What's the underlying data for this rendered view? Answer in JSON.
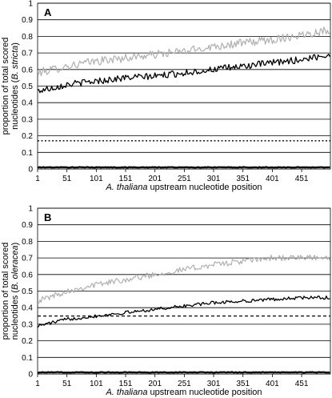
{
  "chart_data": [
    {
      "type": "line",
      "panel_label": "A",
      "ylabel": "proportion of total scored nucleotides (B. stricta)",
      "ylabel_parts": [
        "proportion of total scored",
        "nucleotides (",
        "B. stricta",
        ")"
      ],
      "xlabel": "A. thaliana upstream nucleotide position",
      "xlabel_parts": [
        "A. thaliana",
        " upstream nucleotide position"
      ],
      "ylim": [
        0,
        1
      ],
      "xlim": [
        1,
        500
      ],
      "yticks": [
        "0",
        "0.1",
        "0.2",
        "0.3",
        "0.4",
        "0.5",
        "0.6",
        "0.7",
        "0.8",
        "0.9",
        "1"
      ],
      "xticks": [
        "1",
        "51",
        "101",
        "151",
        "201",
        "251",
        "301",
        "351",
        "401",
        "451"
      ],
      "grid": true,
      "series": [
        {
          "style": "gray-solid",
          "color": "#b0b0b0",
          "x": [
            1,
            51,
            101,
            151,
            201,
            251,
            301,
            351,
            401,
            451,
            500
          ],
          "values": [
            0.58,
            0.62,
            0.65,
            0.67,
            0.69,
            0.71,
            0.74,
            0.76,
            0.78,
            0.81,
            0.84
          ],
          "noise": 0.025
        },
        {
          "style": "black-solid",
          "color": "#000000",
          "x": [
            1,
            51,
            101,
            151,
            201,
            251,
            301,
            351,
            401,
            451,
            500
          ],
          "values": [
            0.47,
            0.51,
            0.53,
            0.55,
            0.56,
            0.58,
            0.6,
            0.62,
            0.64,
            0.66,
            0.69
          ],
          "noise": 0.02
        },
        {
          "style": "black-dotted",
          "color": "#000000",
          "x": [
            1,
            500
          ],
          "values": [
            0.17,
            0.17
          ],
          "noise": 0
        },
        {
          "style": "black-thick",
          "color": "#000000",
          "x": [
            1,
            500
          ],
          "values": [
            0.01,
            0.01
          ],
          "noise": 0.002
        }
      ]
    },
    {
      "type": "line",
      "panel_label": "B",
      "ylabel": "proportion of total scored nucleotides (B. oleracea)",
      "ylabel_parts": [
        "proportion of total scored",
        "nucleotides (",
        "B. oleracea",
        ")"
      ],
      "xlabel": "A. thaliana upstream nucleotide position",
      "xlabel_parts": [
        "A. thaliana",
        " upstream nucleotide position"
      ],
      "ylim": [
        0,
        1
      ],
      "xlim": [
        1,
        500
      ],
      "yticks": [
        "0",
        "0.1",
        "0.2",
        "0.3",
        "0.4",
        "0.5",
        "0.6",
        "0.7",
        "0.8",
        "0.9",
        "1"
      ],
      "xticks": [
        "1",
        "51",
        "101",
        "151",
        "201",
        "251",
        "301",
        "351",
        "401",
        "451"
      ],
      "grid": true,
      "series": [
        {
          "style": "gray-solid",
          "color": "#b0b0b0",
          "x": [
            1,
            51,
            101,
            151,
            201,
            251,
            301,
            351,
            401,
            451,
            500
          ],
          "values": [
            0.44,
            0.5,
            0.54,
            0.57,
            0.6,
            0.63,
            0.66,
            0.68,
            0.7,
            0.7,
            0.7
          ],
          "noise": 0.018
        },
        {
          "style": "black-solid",
          "color": "#000000",
          "x": [
            1,
            51,
            101,
            151,
            201,
            251,
            301,
            351,
            401,
            451,
            500
          ],
          "values": [
            0.29,
            0.33,
            0.35,
            0.37,
            0.39,
            0.41,
            0.43,
            0.44,
            0.45,
            0.46,
            0.46
          ],
          "noise": 0.01
        },
        {
          "style": "black-dashed",
          "color": "#000000",
          "x": [
            1,
            500
          ],
          "values": [
            0.35,
            0.35
          ],
          "noise": 0
        },
        {
          "style": "black-thick",
          "color": "#000000",
          "x": [
            1,
            500
          ],
          "values": [
            0.01,
            0.01
          ],
          "noise": 0.002
        }
      ]
    }
  ]
}
